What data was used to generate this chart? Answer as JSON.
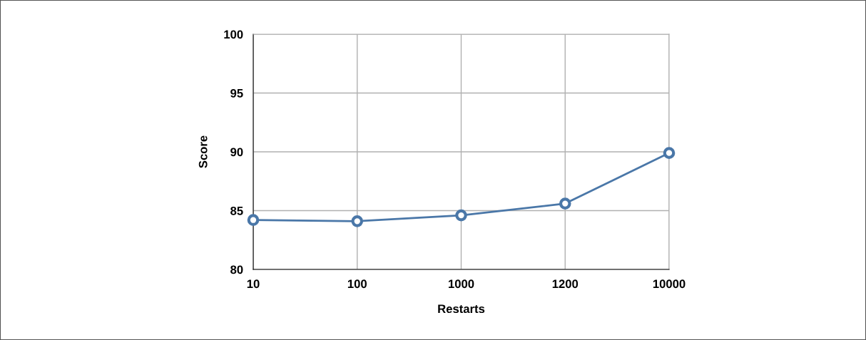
{
  "chart_data": {
    "type": "line",
    "xlabel": "Restarts",
    "ylabel": "Score",
    "categories": [
      "10",
      "100",
      "1000",
      "1200",
      "10000"
    ],
    "series": [
      {
        "color": "#4a77a8",
        "values": [
          84.2,
          84.1,
          84.6,
          85.6,
          89.9
        ]
      }
    ],
    "ylim": [
      80,
      100
    ],
    "yticks": [
      80,
      85,
      90,
      95,
      100
    ],
    "grid": true,
    "marker": "circle",
    "line_style": "solid"
  }
}
